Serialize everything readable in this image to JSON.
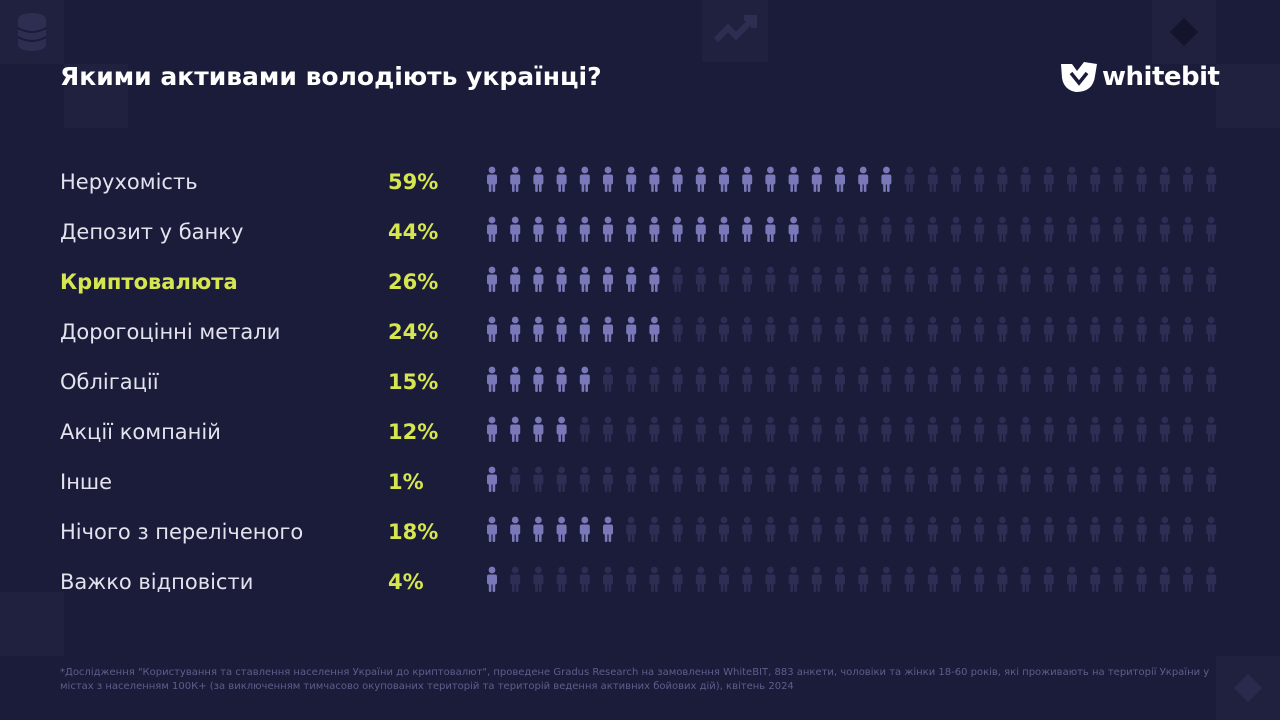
{
  "header": {
    "title": "Якими активами володіють українці?",
    "brand": "whitebit"
  },
  "colors": {
    "background": "#1b1b3a",
    "active_person": "#7a78b8",
    "inactive_person": "#2e2e54",
    "accent": "#d6e64f"
  },
  "chart_data": {
    "type": "bar",
    "title": "Якими активами володіють українці?",
    "unit": "%",
    "icons_per_row": 32,
    "categories": [
      "Нерухомість",
      "Депозит у банку",
      "Криптовалюта",
      "Дорогоцінні метали",
      "Облігації",
      "Акції компаній",
      "Інше",
      "Нічого з переліченого",
      "Важко відповісти"
    ],
    "values": [
      59,
      44,
      26,
      24,
      15,
      12,
      1,
      18,
      4
    ],
    "value_labels": [
      "59%",
      "44%",
      "26%",
      "24%",
      "15%",
      "12%",
      "1%",
      "18%",
      "4%"
    ],
    "highlighted_category": "Криптовалюта"
  },
  "footnote": "*Дослідження \"Користування та ставлення населення України до криптовалют\", проведене Gradus Research на замовлення WhiteBIT, 883 анкети, чоловіки та жінки 18-60 років, які проживають на території України у містах з населенням 100К+ (за виключенням тимчасово окупованих територій та територій ведення активних бойових дій), квітень 2024"
}
